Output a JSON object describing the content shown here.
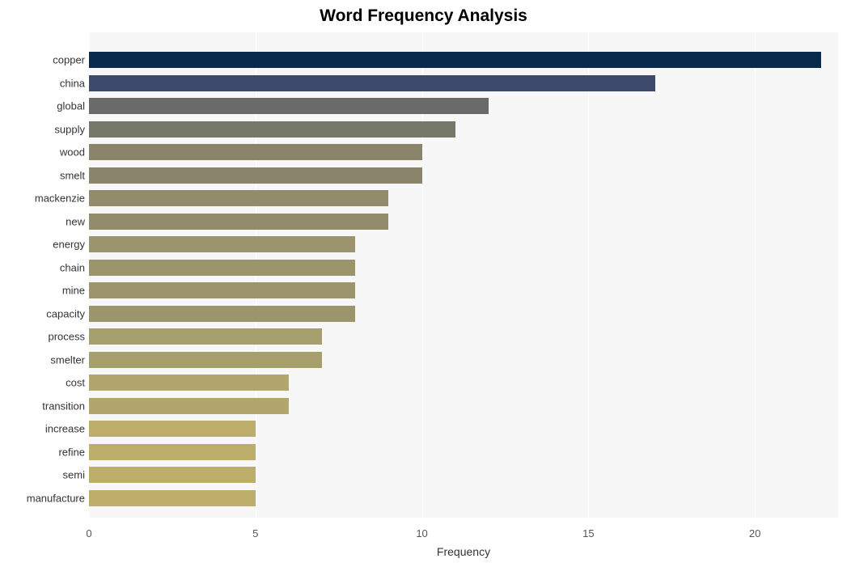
{
  "chart": {
    "type": "bar-horizontal",
    "title": "Word Frequency Analysis",
    "title_fontsize": 21,
    "title_fontweight": 700,
    "x_axis_title": "Frequency",
    "x_axis_title_fontsize": 14,
    "background_color": "#ffffff",
    "plot_background_color": "#f7f7f7",
    "grid_color": "#ffffff",
    "tick_label_color": "#555555",
    "ytick_label_color": "#333333",
    "tick_fontsize": 13,
    "xlim": [
      0,
      22.5
    ],
    "xticks": [
      0,
      5,
      10,
      15,
      20
    ],
    "bar_height_ratio": 0.7,
    "slot_height": 28.5,
    "top_pad": 20,
    "categories": [
      "copper",
      "china",
      "global",
      "supply",
      "wood",
      "smelt",
      "mackenzie",
      "new",
      "energy",
      "chain",
      "mine",
      "capacity",
      "process",
      "smelter",
      "cost",
      "transition",
      "increase",
      "refine",
      "semi",
      "manufacture"
    ],
    "values": [
      22,
      17,
      12,
      11,
      10,
      10,
      9,
      9,
      8,
      8,
      8,
      8,
      7,
      7,
      6,
      6,
      5,
      5,
      5,
      5
    ],
    "bar_colors": [
      "#0a2a4d",
      "#3d4a6c",
      "#6a6a6a",
      "#787868",
      "#89846a",
      "#89846a",
      "#938c6c",
      "#938c6c",
      "#9c946c",
      "#9c946c",
      "#9c946c",
      "#9c946c",
      "#a79e6e",
      "#a79e6e",
      "#b1a66e",
      "#b1a66e",
      "#bcae6a",
      "#bcae6a",
      "#bcae6a",
      "#bcae6a"
    ]
  }
}
